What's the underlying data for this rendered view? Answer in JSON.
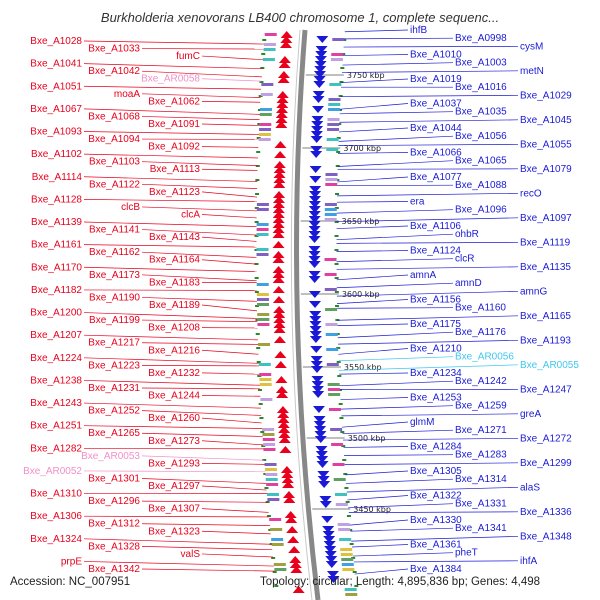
{
  "title": "Burkholderia xenovorans LB400 chromosome 1, complete sequenc...",
  "footer": {
    "accession": "Accession: NC_007951",
    "summary": "Topology: circular; Length: 4,895,836 bp; Genes: 4,498"
  },
  "colors": {
    "left_strand": "#e8001c",
    "right_strand": "#1a1ad6",
    "pseudo_left": "#f090c8",
    "pseudo_right": "#40c8f0",
    "tick": "#2a8a2a",
    "backbone": "#888888"
  },
  "kbp_labels": [
    "3750 kbp",
    "3700 kbp",
    "3650 kbp",
    "3600 kbp",
    "3550 kbp",
    "3500 kbp",
    "3450 kbp"
  ],
  "left_labels": [
    {
      "t": "Bxe_A1028",
      "c": "red"
    },
    {
      "t": "Bxe_A1033",
      "c": "red"
    },
    {
      "t": "fumC",
      "c": "red"
    },
    {
      "t": "Bxe_A1041",
      "c": "red"
    },
    {
      "t": "Bxe_A1042",
      "c": "red"
    },
    {
      "t": "Bxe_AR0058",
      "c": "pink"
    },
    {
      "t": "Bxe_A1051",
      "c": "red"
    },
    {
      "t": "moaA",
      "c": "red"
    },
    {
      "t": "Bxe_A1062",
      "c": "red"
    },
    {
      "t": "Bxe_A1067",
      "c": "red"
    },
    {
      "t": "Bxe_A1068",
      "c": "red"
    },
    {
      "t": "Bxe_A1091",
      "c": "red"
    },
    {
      "t": "Bxe_A1093",
      "c": "red"
    },
    {
      "t": "Bxe_A1094",
      "c": "red"
    },
    {
      "t": "Bxe_A1092",
      "c": "red"
    },
    {
      "t": "Bxe_A1102",
      "c": "red"
    },
    {
      "t": "Bxe_A1103",
      "c": "red"
    },
    {
      "t": "Bxe_A1113",
      "c": "red"
    },
    {
      "t": "Bxe_A1114",
      "c": "red"
    },
    {
      "t": "Bxe_A1122",
      "c": "red"
    },
    {
      "t": "Bxe_A1123",
      "c": "red"
    },
    {
      "t": "Bxe_A1128",
      "c": "red"
    },
    {
      "t": "clcB",
      "c": "red"
    },
    {
      "t": "clcA",
      "c": "red"
    },
    {
      "t": "Bxe_A1139",
      "c": "red"
    },
    {
      "t": "Bxe_A1141",
      "c": "red"
    },
    {
      "t": "Bxe_A1143",
      "c": "red"
    },
    {
      "t": "Bxe_A1161",
      "c": "red"
    },
    {
      "t": "Bxe_A1162",
      "c": "red"
    },
    {
      "t": "Bxe_A1164",
      "c": "red"
    },
    {
      "t": "Bxe_A1170",
      "c": "red"
    },
    {
      "t": "Bxe_A1173",
      "c": "red"
    },
    {
      "t": "Bxe_A1183",
      "c": "red"
    },
    {
      "t": "Bxe_A1182",
      "c": "red"
    },
    {
      "t": "Bxe_A1190",
      "c": "red"
    },
    {
      "t": "Bxe_A1189",
      "c": "red"
    },
    {
      "t": "Bxe_A1200",
      "c": "red"
    },
    {
      "t": "Bxe_A1199",
      "c": "red"
    },
    {
      "t": "Bxe_A1208",
      "c": "red"
    },
    {
      "t": "Bxe_A1207",
      "c": "red"
    },
    {
      "t": "Bxe_A1217",
      "c": "red"
    },
    {
      "t": "Bxe_A1216",
      "c": "red"
    },
    {
      "t": "Bxe_A1224",
      "c": "red"
    },
    {
      "t": "Bxe_A1223",
      "c": "red"
    },
    {
      "t": "Bxe_A1232",
      "c": "red"
    },
    {
      "t": "Bxe_A1238",
      "c": "red"
    },
    {
      "t": "Bxe_A1231",
      "c": "red"
    },
    {
      "t": "Bxe_A1244",
      "c": "red"
    },
    {
      "t": "Bxe_A1243",
      "c": "red"
    },
    {
      "t": "Bxe_A1252",
      "c": "red"
    },
    {
      "t": "Bxe_A1260",
      "c": "red"
    },
    {
      "t": "Bxe_A1251",
      "c": "red"
    },
    {
      "t": "Bxe_A1265",
      "c": "red"
    },
    {
      "t": "Bxe_A1273",
      "c": "red"
    },
    {
      "t": "Bxe_A1282",
      "c": "red"
    },
    {
      "t": "Bxe_AR0053",
      "c": "pink"
    },
    {
      "t": "Bxe_A1293",
      "c": "red"
    },
    {
      "t": "Bxe_AR0052",
      "c": "pink"
    },
    {
      "t": "Bxe_A1301",
      "c": "red"
    },
    {
      "t": "Bxe_A1297",
      "c": "red"
    },
    {
      "t": "Bxe_A1310",
      "c": "red"
    },
    {
      "t": "Bxe_A1296",
      "c": "red"
    },
    {
      "t": "Bxe_A1307",
      "c": "red"
    },
    {
      "t": "Bxe_A1306",
      "c": "red"
    },
    {
      "t": "Bxe_A1312",
      "c": "red"
    },
    {
      "t": "Bxe_A1323",
      "c": "red"
    },
    {
      "t": "Bxe_A1324",
      "c": "red"
    },
    {
      "t": "Bxe_A1328",
      "c": "red"
    },
    {
      "t": "valS",
      "c": "red"
    },
    {
      "t": "prpE",
      "c": "red"
    },
    {
      "t": "Bxe_A1342",
      "c": "red"
    }
  ],
  "right_labels": [
    {
      "t": "ihfB",
      "c": "blue"
    },
    {
      "t": "Bxe_A0998",
      "c": "blue"
    },
    {
      "t": "cysM",
      "c": "blue"
    },
    {
      "t": "Bxe_A1010",
      "c": "blue"
    },
    {
      "t": "Bxe_A1003",
      "c": "blue"
    },
    {
      "t": "metN",
      "c": "blue"
    },
    {
      "t": "Bxe_A1019",
      "c": "blue"
    },
    {
      "t": "Bxe_A1016",
      "c": "blue"
    },
    {
      "t": "Bxe_A1029",
      "c": "blue"
    },
    {
      "t": "Bxe_A1037",
      "c": "blue"
    },
    {
      "t": "Bxe_A1035",
      "c": "blue"
    },
    {
      "t": "Bxe_A1045",
      "c": "blue"
    },
    {
      "t": "Bxe_A1044",
      "c": "blue"
    },
    {
      "t": "Bxe_A1056",
      "c": "blue"
    },
    {
      "t": "Bxe_A1055",
      "c": "blue"
    },
    {
      "t": "Bxe_A1066",
      "c": "blue"
    },
    {
      "t": "Bxe_A1065",
      "c": "blue"
    },
    {
      "t": "Bxe_A1079",
      "c": "blue"
    },
    {
      "t": "Bxe_A1077",
      "c": "blue"
    },
    {
      "t": "Bxe_A1088",
      "c": "blue"
    },
    {
      "t": "recO",
      "c": "blue"
    },
    {
      "t": "era",
      "c": "blue"
    },
    {
      "t": "Bxe_A1096",
      "c": "blue"
    },
    {
      "t": "Bxe_A1097",
      "c": "blue"
    },
    {
      "t": "Bxe_A1106",
      "c": "blue"
    },
    {
      "t": "ohbR",
      "c": "blue"
    },
    {
      "t": "Bxe_A1119",
      "c": "blue"
    },
    {
      "t": "Bxe_A1124",
      "c": "blue"
    },
    {
      "t": "clcR",
      "c": "blue"
    },
    {
      "t": "Bxe_A1135",
      "c": "blue"
    },
    {
      "t": "amnA",
      "c": "blue"
    },
    {
      "t": "amnD",
      "c": "blue"
    },
    {
      "t": "amnG",
      "c": "blue"
    },
    {
      "t": "Bxe_A1156",
      "c": "blue"
    },
    {
      "t": "Bxe_A1160",
      "c": "blue"
    },
    {
      "t": "Bxe_A1165",
      "c": "blue"
    },
    {
      "t": "Bxe_A1175",
      "c": "blue"
    },
    {
      "t": "Bxe_A1176",
      "c": "blue"
    },
    {
      "t": "Bxe_A1193",
      "c": "blue"
    },
    {
      "t": "Bxe_A1210",
      "c": "blue"
    },
    {
      "t": "Bxe_AR0056",
      "c": "cyan"
    },
    {
      "t": "Bxe_AR0055",
      "c": "cyan"
    },
    {
      "t": "Bxe_A1234",
      "c": "blue"
    },
    {
      "t": "Bxe_A1242",
      "c": "blue"
    },
    {
      "t": "Bxe_A1247",
      "c": "blue"
    },
    {
      "t": "Bxe_A1253",
      "c": "blue"
    },
    {
      "t": "Bxe_A1259",
      "c": "blue"
    },
    {
      "t": "greA",
      "c": "blue"
    },
    {
      "t": "glmM",
      "c": "blue"
    },
    {
      "t": "Bxe_A1271",
      "c": "blue"
    },
    {
      "t": "Bxe_A1272",
      "c": "blue"
    },
    {
      "t": "Bxe_A1284",
      "c": "blue"
    },
    {
      "t": "Bxe_A1283",
      "c": "blue"
    },
    {
      "t": "Bxe_A1299",
      "c": "blue"
    },
    {
      "t": "Bxe_A1305",
      "c": "blue"
    },
    {
      "t": "Bxe_A1314",
      "c": "blue"
    },
    {
      "t": "alaS",
      "c": "blue"
    },
    {
      "t": "Bxe_A1322",
      "c": "blue"
    },
    {
      "t": "Bxe_A1331",
      "c": "blue"
    },
    {
      "t": "Bxe_A1336",
      "c": "blue"
    },
    {
      "t": "Bxe_A1330",
      "c": "blue"
    },
    {
      "t": "Bxe_A1341",
      "c": "blue"
    },
    {
      "t": "Bxe_A1348",
      "c": "blue"
    },
    {
      "t": "Bxe_A1361",
      "c": "blue"
    },
    {
      "t": "pheT",
      "c": "blue"
    },
    {
      "t": "ihfA",
      "c": "blue"
    },
    {
      "t": "Bxe_A1384",
      "c": "blue"
    }
  ]
}
